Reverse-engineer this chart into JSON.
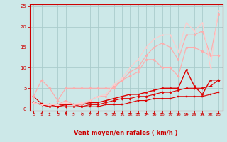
{
  "xlabel": "Vent moyen/en rafales ( km/h )",
  "bg_color": "#cce8e8",
  "grid_color": "#aacccc",
  "xlim": [
    -0.5,
    23.5
  ],
  "ylim": [
    -0.5,
    25.5
  ],
  "yticks": [
    0,
    5,
    10,
    15,
    20,
    25
  ],
  "xticks": [
    0,
    1,
    2,
    3,
    4,
    5,
    6,
    7,
    8,
    9,
    10,
    11,
    12,
    13,
    14,
    15,
    16,
    17,
    18,
    19,
    20,
    21,
    22,
    23
  ],
  "lines": [
    {
      "x": [
        0,
        1,
        2,
        3,
        4,
        5,
        6,
        7,
        8,
        9,
        10,
        11,
        12,
        13,
        14,
        15,
        16,
        17,
        18,
        19,
        20,
        21,
        22,
        23
      ],
      "y": [
        3.0,
        1.2,
        1.0,
        1.0,
        1.0,
        1.0,
        0.5,
        0.5,
        0.5,
        1.0,
        1.0,
        1.0,
        1.5,
        2.0,
        2.0,
        2.5,
        2.5,
        2.5,
        3.0,
        3.0,
        3.0,
        3.0,
        3.5,
        4.0
      ],
      "color": "#dd0000",
      "lw": 0.8,
      "marker": "s",
      "ms": 1.8
    },
    {
      "x": [
        0,
        1,
        2,
        3,
        4,
        5,
        6,
        7,
        8,
        9,
        10,
        11,
        12,
        13,
        14,
        15,
        16,
        17,
        18,
        19,
        20,
        21,
        22,
        23
      ],
      "y": [
        1.5,
        1.0,
        1.0,
        0.5,
        0.5,
        0.5,
        0.5,
        1.0,
        1.0,
        1.5,
        2.0,
        2.5,
        2.5,
        3.0,
        3.0,
        3.5,
        4.0,
        4.0,
        4.5,
        5.0,
        5.0,
        5.0,
        5.5,
        7.0
      ],
      "color": "#dd0000",
      "lw": 0.8,
      "marker": "D",
      "ms": 1.8
    },
    {
      "x": [
        0,
        1,
        2,
        3,
        4,
        5,
        6,
        7,
        8,
        9,
        10,
        11,
        12,
        13,
        14,
        15,
        16,
        17,
        18,
        19,
        20,
        21,
        22,
        23
      ],
      "y": [
        1.5,
        1.0,
        0.5,
        0.5,
        1.0,
        1.0,
        1.0,
        1.5,
        1.5,
        2.0,
        2.5,
        3.0,
        3.5,
        3.5,
        4.0,
        4.5,
        5.0,
        5.0,
        5.0,
        9.5,
        5.5,
        3.5,
        7.0,
        7.0
      ],
      "color": "#dd0000",
      "lw": 1.0,
      "marker": "o",
      "ms": 1.8
    },
    {
      "x": [
        0,
        1,
        2,
        3,
        4,
        5,
        6,
        7,
        8,
        9,
        10,
        11,
        12,
        13,
        14,
        15,
        16,
        17,
        18,
        19,
        20,
        21,
        22,
        23
      ],
      "y": [
        3.0,
        7.0,
        5.0,
        2.0,
        5.0,
        5.0,
        5.0,
        5.0,
        5.0,
        5.0,
        5.0,
        7.0,
        8.0,
        9.0,
        12.0,
        12.0,
        10.0,
        10.0,
        8.0,
        15.0,
        15.0,
        14.0,
        13.0,
        13.0
      ],
      "color": "#ffaaaa",
      "lw": 0.8,
      "marker": "D",
      "ms": 1.8
    },
    {
      "x": [
        0,
        1,
        2,
        3,
        4,
        5,
        6,
        7,
        8,
        9,
        10,
        11,
        12,
        13,
        14,
        15,
        16,
        17,
        18,
        19,
        20,
        21,
        22,
        23
      ],
      "y": [
        1.5,
        1.0,
        1.0,
        1.0,
        2.0,
        1.0,
        1.0,
        2.0,
        3.0,
        3.0,
        5.5,
        7.0,
        9.0,
        10.0,
        13.0,
        15.0,
        16.0,
        15.0,
        12.0,
        18.0,
        18.0,
        19.0,
        13.0,
        23.0
      ],
      "color": "#ffaaaa",
      "lw": 0.8,
      "marker": "o",
      "ms": 1.8
    },
    {
      "x": [
        0,
        1,
        2,
        3,
        4,
        5,
        6,
        7,
        8,
        9,
        10,
        11,
        12,
        13,
        14,
        15,
        16,
        17,
        18,
        19,
        20,
        21,
        22,
        23
      ],
      "y": [
        1.5,
        1.0,
        1.0,
        1.0,
        1.5,
        1.0,
        1.5,
        2.0,
        3.0,
        3.5,
        6.0,
        7.5,
        10.0,
        12.0,
        15.0,
        17.0,
        18.0,
        18.0,
        14.0,
        21.0,
        19.0,
        21.0,
        10.0,
        24.0
      ],
      "color": "#ffcccc",
      "lw": 0.8,
      "marker": "^",
      "ms": 1.8
    }
  ],
  "xlabel_color": "#cc0000",
  "tick_color": "#cc0000",
  "axis_color": "#cc0000",
  "arrow_angles": [
    225,
    225,
    225,
    200,
    200,
    215,
    200,
    225,
    260,
    270,
    290,
    300,
    315,
    315,
    320,
    330,
    330,
    330,
    350,
    350,
    355,
    355,
    10,
    30
  ]
}
